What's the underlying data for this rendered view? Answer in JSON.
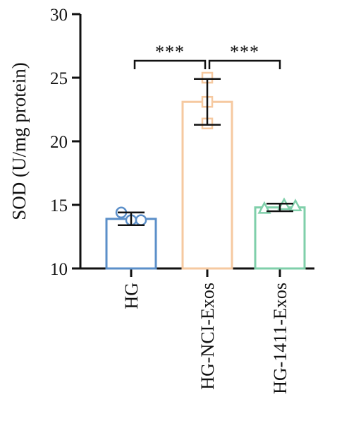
{
  "chart_data": {
    "type": "bar",
    "title": "",
    "xlabel": "",
    "ylabel": "SOD (U/mg protein)",
    "ylim": [
      10,
      30
    ],
    "yticks": [
      10,
      15,
      20,
      25,
      30
    ],
    "grid": false,
    "legend": "none",
    "categories": [
      "HG",
      "HG-NCI-Exos",
      "HG-1411-Exos"
    ],
    "values": [
      13.9,
      23.1,
      14.8
    ],
    "error": [
      0.5,
      1.8,
      0.3
    ],
    "points": [
      [
        14.4,
        13.8,
        13.8
      ],
      [
        25.0,
        23.1,
        21.4
      ],
      [
        14.7,
        15.0,
        14.9
      ]
    ],
    "marker_shapes": [
      "circle",
      "square",
      "triangle"
    ],
    "colors": [
      "#5b8fc9",
      "#f6c9a0",
      "#7fcfaa"
    ],
    "significance": [
      {
        "from": "HG",
        "to": "HG-NCI-Exos",
        "label": "***"
      },
      {
        "from": "HG-NCI-Exos",
        "to": "HG-1411-Exos",
        "label": "***"
      }
    ]
  }
}
